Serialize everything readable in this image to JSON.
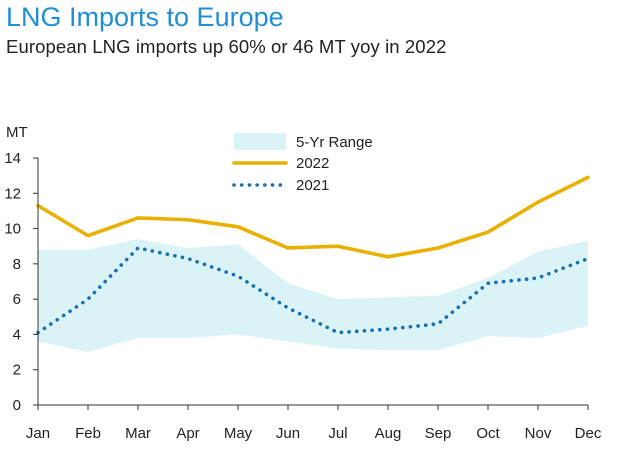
{
  "header": {
    "title": "LNG Imports to Europe",
    "subtitle": "European LNG imports up 60% or 46 MT yoy in 2022"
  },
  "chart_data": {
    "type": "line",
    "title": "LNG Imports to Europe",
    "subtitle": "European LNG imports up 60% or 46 MT yoy in 2022",
    "ylabel": "MT",
    "xlabel": "",
    "ylim": [
      0,
      14
    ],
    "yticks": [
      0,
      2,
      4,
      6,
      8,
      10,
      12,
      14
    ],
    "categories": [
      "Jan",
      "Feb",
      "Mar",
      "Apr",
      "May",
      "Jun",
      "Jul",
      "Aug",
      "Sep",
      "Oct",
      "Nov",
      "Dec"
    ],
    "range": {
      "name": "5-Yr Range",
      "color": "#daf3f7",
      "low": [
        3.6,
        3.0,
        3.8,
        3.8,
        4.0,
        3.6,
        3.2,
        3.1,
        3.1,
        3.9,
        3.8,
        4.5
      ],
      "high": [
        8.8,
        8.8,
        9.4,
        8.9,
        9.1,
        6.9,
        6.0,
        6.1,
        6.2,
        7.2,
        8.7,
        9.3
      ]
    },
    "series": [
      {
        "name": "2022",
        "color": "#e8b000",
        "style": "solid",
        "values": [
          11.3,
          9.6,
          10.6,
          10.5,
          10.1,
          8.9,
          9.0,
          8.4,
          8.9,
          9.8,
          11.5,
          12.9
        ]
      },
      {
        "name": "2021",
        "color": "#1a6fb0",
        "style": "dotted",
        "values": [
          4.1,
          6.0,
          8.9,
          8.3,
          7.3,
          5.5,
          4.1,
          4.3,
          4.6,
          6.9,
          7.2,
          8.3
        ]
      }
    ],
    "legend_position": "top-center",
    "grid": false
  }
}
